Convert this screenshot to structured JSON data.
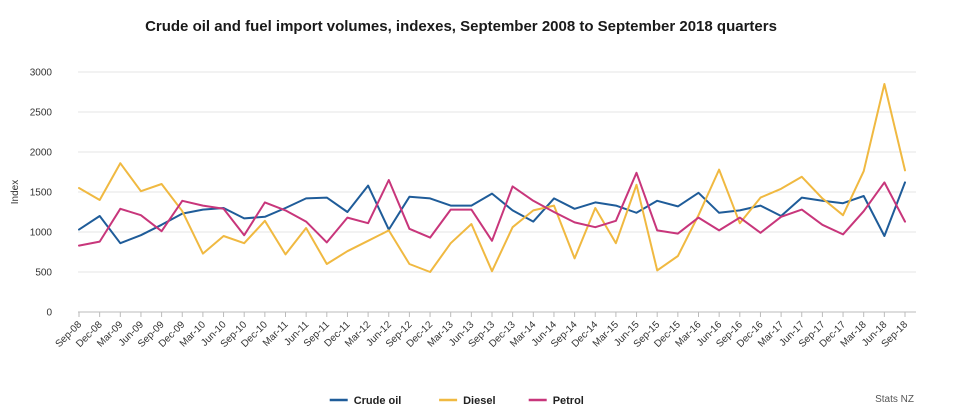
{
  "chart_data": {
    "type": "line",
    "title": "Crude oil and fuel import volumes, indexes, September 2008 to September 2018 quarters",
    "ylabel": "Index",
    "xlabel": "",
    "ylim": [
      0,
      3000
    ],
    "yticks": [
      0,
      500,
      1000,
      1500,
      2000,
      2500,
      3000
    ],
    "grid": true,
    "legend_position": "bottom",
    "categories": [
      "Sep-08",
      "Dec-08",
      "Mar-09",
      "Jun-09",
      "Sep-09",
      "Dec-09",
      "Mar-10",
      "Jun-10",
      "Sep-10",
      "Dec-10",
      "Mar-11",
      "Jun-11",
      "Sep-11",
      "Dec-11",
      "Mar-12",
      "Jun-12",
      "Sep-12",
      "Dec-12",
      "Mar-13",
      "Jun-13",
      "Sep-13",
      "Dec-13",
      "Mar-14",
      "Jun-14",
      "Sep-14",
      "Dec-14",
      "Mar-15",
      "Jun-15",
      "Sep-15",
      "Dec-15",
      "Mar-16",
      "Jun-16",
      "Sep-16",
      "Dec-16",
      "Mar-17",
      "Jun-17",
      "Sep-17",
      "Dec-17",
      "Mar-18",
      "Jun-18",
      "Sep-18"
    ],
    "series": [
      {
        "name": "Crude oil",
        "color": "#1f5c99",
        "values": [
          1030,
          1200,
          860,
          960,
          1090,
          1230,
          1280,
          1300,
          1170,
          1190,
          1300,
          1420,
          1430,
          1250,
          1580,
          1030,
          1440,
          1420,
          1330,
          1330,
          1480,
          1270,
          1130,
          1420,
          1290,
          1370,
          1330,
          1240,
          1390,
          1320,
          1490,
          1240,
          1270,
          1330,
          1200,
          1430,
          1390,
          1360,
          1450,
          950,
          1620
        ]
      },
      {
        "name": "Diesel",
        "color": "#f0b941",
        "values": [
          1550,
          1400,
          1860,
          1510,
          1600,
          1260,
          730,
          950,
          860,
          1140,
          720,
          1050,
          600,
          760,
          890,
          1020,
          600,
          500,
          860,
          1100,
          510,
          1060,
          1270,
          1330,
          670,
          1300,
          860,
          1590,
          520,
          700,
          1210,
          1780,
          1110,
          1430,
          1540,
          1690,
          1420,
          1210,
          1760,
          2850,
          1770
        ]
      },
      {
        "name": "Petrol",
        "color": "#c8367b",
        "values": [
          830,
          880,
          1290,
          1210,
          1010,
          1390,
          1330,
          1290,
          960,
          1370,
          1270,
          1130,
          870,
          1180,
          1110,
          1650,
          1040,
          930,
          1280,
          1280,
          890,
          1570,
          1390,
          1250,
          1120,
          1060,
          1140,
          1740,
          1020,
          980,
          1180,
          1020,
          1180,
          990,
          1190,
          1280,
          1090,
          970,
          1260,
          1620,
          1130
        ]
      }
    ]
  },
  "source": "Stats NZ"
}
